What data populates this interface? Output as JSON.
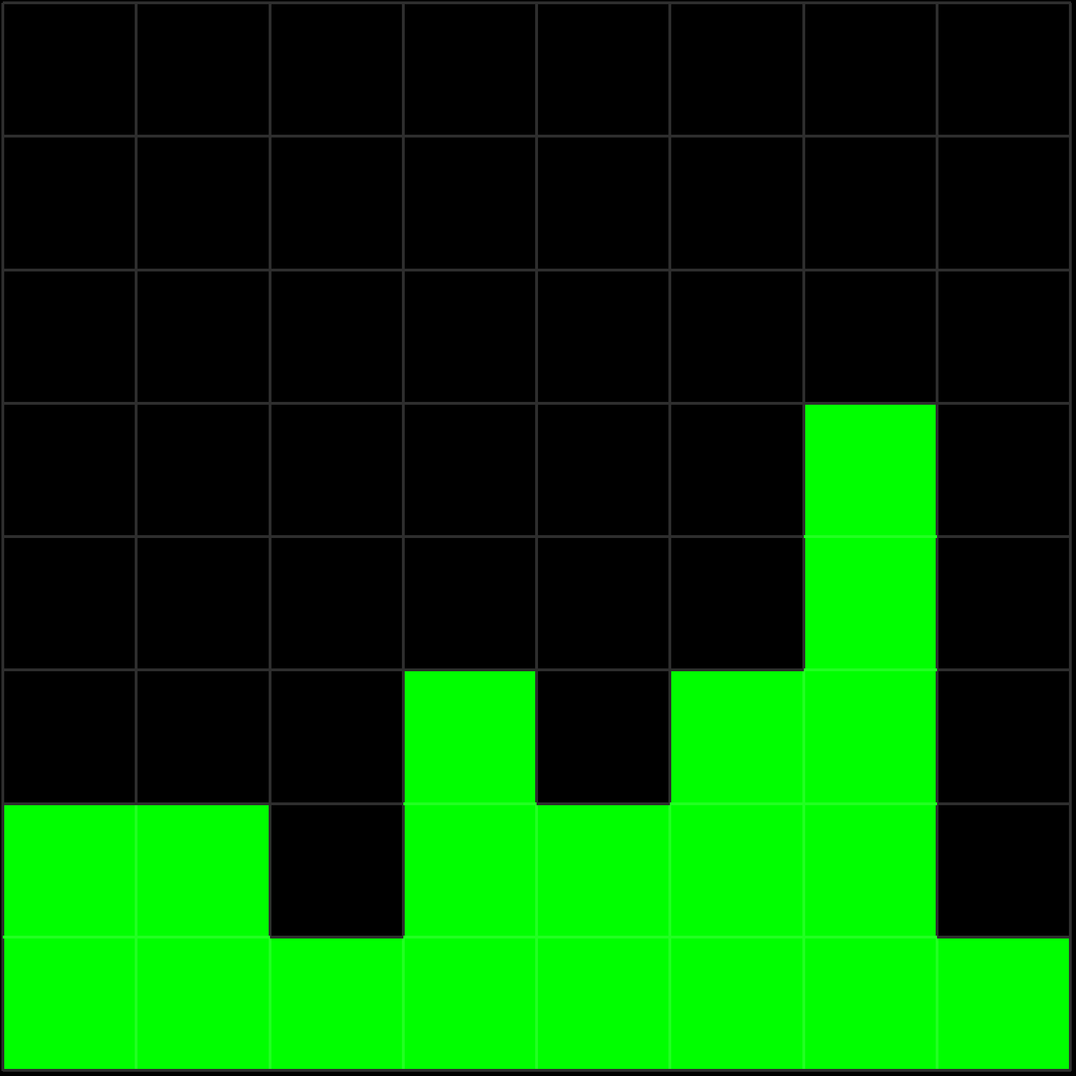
{
  "grid": {
    "columns": 8,
    "rows": 8,
    "column_heights": [
      2,
      2,
      1,
      3,
      2,
      3,
      5,
      1
    ]
  },
  "colors": {
    "background": "#000000",
    "filled": "#00ff00",
    "gridline": "#2e2e2e",
    "gridline_on_filled": "#22ff22"
  }
}
